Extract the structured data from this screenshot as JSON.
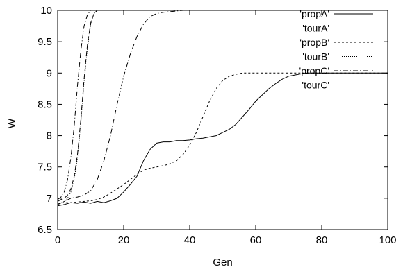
{
  "chart_data": {
    "type": "line",
    "title": "",
    "xlabel": "Gen",
    "ylabel": "W",
    "xlim": [
      0,
      100
    ],
    "ylim": [
      6.5,
      10
    ],
    "xticks": [
      0,
      20,
      40,
      60,
      80,
      100
    ],
    "yticks": [
      6.5,
      7,
      7.5,
      8,
      8.5,
      9,
      9.5,
      10
    ],
    "ytick_labels": [
      "6.5",
      "7",
      "7.5",
      "8",
      "8.5",
      "9",
      "9.5",
      "10"
    ],
    "grid": false,
    "legend_position": "top-right",
    "series": [
      {
        "name": "'propA'",
        "style": "solid",
        "x": [
          0,
          2,
          4,
          6,
          8,
          10,
          12,
          14,
          16,
          18,
          20,
          22,
          24,
          26,
          28,
          30,
          32,
          34,
          36,
          38,
          40,
          42,
          44,
          46,
          48,
          50,
          52,
          54,
          56,
          58,
          60,
          62,
          64,
          66,
          68,
          70,
          72,
          74,
          76,
          78,
          80,
          85,
          90,
          95,
          100
        ],
        "y": [
          6.88,
          6.9,
          6.93,
          6.92,
          6.94,
          6.92,
          6.95,
          6.93,
          6.96,
          7.0,
          7.1,
          7.22,
          7.35,
          7.6,
          7.78,
          7.88,
          7.9,
          7.9,
          7.92,
          7.92,
          7.93,
          7.95,
          7.96,
          7.98,
          8.0,
          8.05,
          8.1,
          8.18,
          8.3,
          8.42,
          8.55,
          8.65,
          8.75,
          8.83,
          8.9,
          8.95,
          8.97,
          8.99,
          9.0,
          9.0,
          9.0,
          9.0,
          9.0,
          9.0,
          9.0
        ]
      },
      {
        "name": "'tourA'",
        "style": "dashed",
        "x": [
          0,
          1,
          2,
          3,
          4,
          5,
          6,
          7,
          8,
          9,
          10,
          11,
          12,
          13,
          14
        ],
        "y": [
          6.95,
          6.98,
          7.0,
          7.05,
          7.15,
          7.35,
          7.7,
          8.25,
          8.9,
          9.45,
          9.8,
          9.95,
          10.0,
          10.0,
          10.0
        ]
      },
      {
        "name": "'propB'",
        "style": "short-dashed",
        "x": [
          0,
          2,
          4,
          6,
          8,
          10,
          12,
          14,
          16,
          18,
          20,
          22,
          24,
          26,
          28,
          30,
          32,
          34,
          36,
          38,
          40,
          42,
          44,
          46,
          48,
          50,
          52,
          54,
          56,
          58,
          60,
          62,
          64,
          66,
          68,
          70,
          75,
          80,
          85,
          90,
          95,
          100
        ],
        "y": [
          6.92,
          6.93,
          6.93,
          6.94,
          6.95,
          6.96,
          6.98,
          7.02,
          7.08,
          7.15,
          7.22,
          7.3,
          7.38,
          7.45,
          7.48,
          7.5,
          7.52,
          7.55,
          7.6,
          7.7,
          7.85,
          8.05,
          8.3,
          8.55,
          8.75,
          8.88,
          8.95,
          8.98,
          9.0,
          9.0,
          9.0,
          9.0,
          9.0,
          9.0,
          9.0,
          9.0,
          9.0,
          9.0,
          9.0,
          9.0,
          9.0,
          9.0
        ]
      },
      {
        "name": "'tourB'",
        "style": "dotted",
        "x": [
          0,
          1,
          2,
          3,
          4,
          5,
          6,
          7,
          8,
          9,
          10,
          11,
          12,
          13
        ],
        "y": [
          6.9,
          6.92,
          6.95,
          7.0,
          7.1,
          7.3,
          7.65,
          8.2,
          8.85,
          9.4,
          9.78,
          9.95,
          10.0,
          10.0
        ]
      },
      {
        "name": "'propC'",
        "style": "dash-dot",
        "x": [
          0,
          2,
          4,
          6,
          8,
          10,
          12,
          14,
          16,
          18,
          20,
          22,
          24,
          26,
          28,
          30,
          32,
          34,
          36,
          38,
          40,
          45,
          50,
          55,
          60,
          65,
          70,
          75,
          80,
          90,
          100
        ],
        "y": [
          6.9,
          6.95,
          7.0,
          7.02,
          7.05,
          7.12,
          7.3,
          7.6,
          8.0,
          8.5,
          8.95,
          9.3,
          9.58,
          9.78,
          9.9,
          9.95,
          9.97,
          9.98,
          9.99,
          10.0,
          10.0,
          10.0,
          10.0,
          10.0,
          10.0,
          10.0,
          10.0,
          10.0,
          10.0,
          10.0,
          10.0
        ]
      },
      {
        "name": "'tourC'",
        "style": "dash-dot",
        "x": [
          0,
          1,
          2,
          3,
          4,
          5,
          6,
          7,
          8,
          9,
          10,
          11
        ],
        "y": [
          6.98,
          7.02,
          7.1,
          7.3,
          7.65,
          8.15,
          8.8,
          9.35,
          9.75,
          9.93,
          10.0,
          10.0
        ]
      }
    ]
  }
}
